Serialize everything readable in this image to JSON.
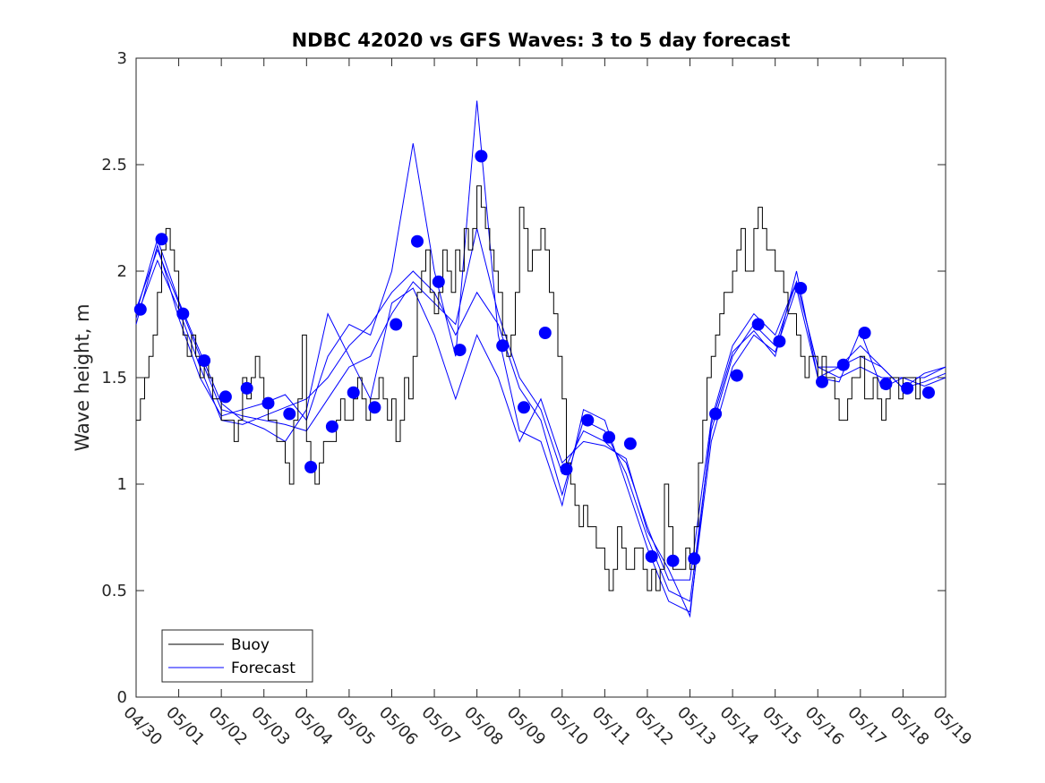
{
  "chart_data": {
    "type": "line",
    "title": "NDBC 42020 vs GFS Waves: 3 to 5 day forecast",
    "xlabel": "",
    "ylabel": "Wave height, m",
    "xlim": [
      "04/30",
      "05/19"
    ],
    "ylim": [
      0,
      3
    ],
    "grid": false,
    "legend_position": "bottom-left",
    "x_ticks": [
      "04/30",
      "05/01",
      "05/02",
      "05/03",
      "05/04",
      "05/05",
      "05/06",
      "05/07",
      "05/08",
      "05/09",
      "05/10",
      "05/11",
      "05/12",
      "05/13",
      "05/14",
      "05/15",
      "05/16",
      "05/17",
      "05/18",
      "05/19"
    ],
    "y_ticks": [
      "0",
      "0.5",
      "1",
      "1.5",
      "2",
      "2.5",
      "3"
    ],
    "colors": {
      "buoy": "#000000",
      "forecast": "#0000ff"
    },
    "series": [
      {
        "name": "Buoy",
        "style": "line",
        "day_offsets": [
          0,
          0.1,
          0.2,
          0.3,
          0.4,
          0.5,
          0.6,
          0.7,
          0.8,
          0.9,
          1.0,
          1.1,
          1.2,
          1.3,
          1.4,
          1.5,
          1.6,
          1.7,
          1.8,
          1.9,
          2.0,
          2.1,
          2.2,
          2.3,
          2.4,
          2.5,
          2.6,
          2.7,
          2.8,
          2.9,
          3.0,
          3.1,
          3.2,
          3.3,
          3.4,
          3.5,
          3.6,
          3.7,
          3.8,
          3.9,
          4.0,
          4.1,
          4.2,
          4.3,
          4.4,
          4.5,
          4.6,
          4.7,
          4.8,
          4.9,
          5.0,
          5.1,
          5.2,
          5.3,
          5.4,
          5.5,
          5.6,
          5.7,
          5.8,
          5.9,
          6.0,
          6.1,
          6.2,
          6.3,
          6.4,
          6.5,
          6.6,
          6.7,
          6.8,
          6.9,
          7.0,
          7.1,
          7.2,
          7.3,
          7.4,
          7.5,
          7.6,
          7.7,
          7.8,
          7.9,
          8.0,
          8.1,
          8.2,
          8.3,
          8.4,
          8.5,
          8.6,
          8.7,
          8.8,
          8.9,
          9.0,
          9.1,
          9.2,
          9.3,
          9.4,
          9.5,
          9.6,
          9.7,
          9.8,
          9.9,
          10.0,
          10.1,
          10.2,
          10.3,
          10.4,
          10.5,
          10.6,
          10.7,
          10.8,
          10.9,
          11.0,
          11.1,
          11.2,
          11.3,
          11.4,
          11.5,
          11.6,
          11.7,
          11.8,
          11.9,
          12.0,
          12.1,
          12.2,
          12.3,
          12.4,
          12.5,
          12.6,
          12.7,
          12.8,
          12.9,
          13.0,
          13.1,
          13.2,
          13.3,
          13.4,
          13.5,
          13.6,
          13.7,
          13.8,
          13.9,
          14.0,
          14.1,
          14.2,
          14.3,
          14.4,
          14.5,
          14.6,
          14.7,
          14.8,
          14.9,
          15.0,
          15.1,
          15.2,
          15.3,
          15.4,
          15.5,
          15.6,
          15.7,
          15.8,
          15.9,
          16.0,
          16.1,
          16.2,
          16.3,
          16.4,
          16.5,
          16.6,
          16.7,
          16.8,
          16.9,
          17.0,
          17.1,
          17.2,
          17.3,
          17.4,
          17.5,
          17.6,
          17.7,
          17.8,
          17.9,
          18.0,
          18.1,
          18.2,
          18.3,
          18.4,
          18.5,
          18.6,
          18.7,
          18.8,
          18.9,
          19.0
        ],
        "values": [
          1.3,
          1.4,
          1.5,
          1.6,
          1.7,
          1.9,
          2.1,
          2.2,
          2.1,
          2.0,
          1.8,
          1.7,
          1.6,
          1.7,
          1.6,
          1.5,
          1.6,
          1.5,
          1.4,
          1.4,
          1.3,
          1.3,
          1.3,
          1.2,
          1.3,
          1.5,
          1.4,
          1.5,
          1.6,
          1.5,
          1.4,
          1.3,
          1.3,
          1.2,
          1.2,
          1.1,
          1.0,
          1.3,
          1.4,
          1.7,
          1.2,
          1.1,
          1.0,
          1.1,
          1.2,
          1.2,
          1.2,
          1.3,
          1.4,
          1.3,
          1.3,
          1.4,
          1.5,
          1.4,
          1.3,
          1.4,
          1.4,
          1.5,
          1.4,
          1.3,
          1.4,
          1.2,
          1.3,
          1.5,
          1.4,
          1.6,
          1.9,
          2.0,
          2.1,
          1.9,
          1.8,
          1.9,
          2.1,
          2.0,
          1.9,
          2.1,
          2.0,
          2.2,
          2.1,
          2.2,
          2.4,
          2.3,
          2.2,
          2.1,
          2.0,
          1.9,
          1.7,
          1.6,
          1.7,
          1.9,
          2.3,
          2.2,
          2.0,
          2.1,
          2.1,
          2.2,
          2.1,
          1.9,
          1.8,
          1.6,
          1.4,
          1.1,
          1.0,
          0.9,
          0.8,
          0.9,
          0.8,
          0.8,
          0.7,
          0.7,
          0.6,
          0.5,
          0.6,
          0.8,
          0.7,
          0.6,
          0.6,
          0.7,
          0.7,
          0.6,
          0.5,
          0.6,
          0.5,
          0.6,
          1.0,
          0.8,
          0.6,
          0.6,
          0.6,
          0.7,
          0.6,
          0.8,
          1.1,
          1.3,
          1.5,
          1.6,
          1.7,
          1.8,
          1.9,
          1.9,
          2.0,
          2.1,
          2.2,
          2.0,
          2.0,
          2.2,
          2.3,
          2.2,
          2.1,
          2.1,
          2.0,
          2.0,
          1.9,
          1.8,
          1.8,
          1.7,
          1.6,
          1.5,
          1.6,
          1.6,
          1.5,
          1.6,
          1.5,
          1.5,
          1.4,
          1.3,
          1.3,
          1.4,
          1.5,
          1.5,
          1.6,
          1.4,
          1.4,
          1.5,
          1.4,
          1.3,
          1.4,
          1.5,
          1.5,
          1.4,
          1.5,
          1.5,
          1.5,
          1.4,
          1.5
        ]
      },
      {
        "name": "Forecast",
        "style": "markers",
        "day_offsets": [
          0.1,
          0.6,
          1.1,
          1.6,
          2.1,
          2.6,
          3.1,
          3.6,
          4.1,
          4.6,
          5.1,
          5.6,
          6.1,
          6.6,
          7.1,
          7.6,
          8.1,
          8.6,
          9.1,
          9.6,
          10.1,
          10.6,
          11.1,
          11.6,
          12.1,
          12.6,
          13.1,
          13.6,
          14.1,
          14.6,
          15.1,
          15.6,
          16.1,
          16.6,
          17.1,
          17.6,
          18.1,
          18.6
        ],
        "values": [
          1.82,
          2.15,
          1.8,
          1.58,
          1.41,
          1.45,
          1.38,
          1.33,
          1.08,
          1.27,
          1.43,
          1.36,
          1.75,
          2.14,
          1.95,
          1.63,
          2.54,
          1.65,
          1.36,
          1.71,
          1.07,
          1.3,
          1.22,
          1.19,
          0.66,
          0.64,
          0.65,
          1.33,
          1.51,
          1.75,
          1.67,
          1.92,
          1.48,
          1.56,
          1.71,
          1.47,
          1.45,
          1.43
        ]
      },
      {
        "name": "",
        "style": "line",
        "day_offsets": [
          0.0,
          0.5,
          1.0,
          1.5,
          2.0,
          2.5,
          3.0,
          3.5,
          4.0,
          4.5,
          5.0,
          5.5,
          6.0,
          6.5,
          7.0,
          7.5,
          8.0,
          8.5,
          9.0,
          9.5,
          10.0,
          10.5,
          11.0,
          11.5,
          12.0,
          12.5,
          13.0,
          13.5,
          14.0,
          14.5,
          15.0,
          15.5,
          16.0,
          16.5,
          17.0,
          17.5,
          18.0,
          18.5,
          19.0
        ],
        "values": [
          1.82,
          2.1,
          1.85,
          1.6,
          1.35,
          1.32,
          1.3,
          1.28,
          1.25,
          1.4,
          1.55,
          1.6,
          1.8,
          1.95,
          1.85,
          1.75,
          2.2,
          1.8,
          1.5,
          1.35,
          1.05,
          1.25,
          1.2,
          1.1,
          0.8,
          0.55,
          0.55,
          1.3,
          1.65,
          1.8,
          1.7,
          1.95,
          1.55,
          1.55,
          1.6,
          1.55,
          1.45,
          1.48,
          1.52
        ]
      },
      {
        "name": "",
        "style": "line",
        "day_offsets": [
          0.0,
          0.5,
          1.0,
          1.5,
          2.0,
          2.5,
          3.0,
          3.5,
          4.0,
          4.5,
          5.0,
          5.5,
          6.0,
          6.5,
          7.0,
          7.5,
          8.0,
          8.5,
          9.0,
          9.5,
          10.0,
          10.5,
          11.0,
          11.5,
          12.0,
          12.5,
          13.0,
          13.5,
          14.0,
          14.5,
          15.0,
          15.5,
          16.0,
          16.5,
          17.0,
          17.5,
          18.0,
          18.5,
          19.0
        ],
        "values": [
          1.78,
          2.05,
          1.82,
          1.55,
          1.3,
          1.28,
          1.32,
          1.36,
          1.4,
          1.5,
          1.65,
          1.75,
          1.9,
          2.0,
          1.9,
          1.7,
          1.9,
          1.75,
          1.45,
          1.3,
          0.95,
          1.3,
          1.25,
          1.05,
          0.75,
          0.5,
          0.45,
          1.25,
          1.6,
          1.75,
          1.65,
          1.95,
          1.55,
          1.5,
          1.55,
          1.5,
          1.5,
          1.5,
          1.55
        ]
      },
      {
        "name": "",
        "style": "line",
        "day_offsets": [
          0.0,
          0.5,
          1.0,
          1.5,
          2.0,
          2.5,
          3.0,
          3.5,
          4.0,
          4.5,
          5.0,
          5.5,
          6.0,
          6.5,
          7.0,
          7.5,
          8.0,
          8.5,
          9.0,
          9.5,
          10.0,
          10.5,
          11.0,
          11.5,
          12.0,
          12.5,
          13.0,
          13.5,
          14.0,
          14.5,
          15.0,
          15.5,
          16.0,
          16.5,
          17.0,
          17.5,
          18.0,
          18.5,
          19.0
        ],
        "values": [
          1.75,
          2.12,
          1.78,
          1.5,
          1.32,
          1.35,
          1.38,
          1.42,
          1.3,
          1.6,
          1.75,
          1.7,
          2.0,
          2.6,
          2.0,
          1.6,
          2.8,
          1.7,
          1.25,
          1.2,
          0.9,
          1.35,
          1.3,
          1.0,
          0.7,
          0.45,
          0.4,
          1.2,
          1.55,
          1.7,
          1.62,
          1.92,
          1.5,
          1.55,
          1.65,
          1.55,
          1.45,
          1.52,
          1.55
        ]
      },
      {
        "name": "",
        "style": "line",
        "day_offsets": [
          0.0,
          0.5,
          1.0,
          1.5,
          2.0,
          2.5,
          3.0,
          3.5,
          4.0,
          4.5,
          5.0,
          5.5,
          6.0,
          6.5,
          7.0,
          7.5,
          8.0,
          8.5,
          9.0,
          9.5,
          10.0,
          10.5,
          11.0,
          11.5,
          12.0,
          12.5,
          13.0,
          13.5,
          14.0,
          14.5,
          15.0,
          15.5,
          16.0,
          16.5,
          17.0,
          17.5,
          18.0,
          18.5,
          19.0
        ],
        "values": [
          1.8,
          2.15,
          1.86,
          1.62,
          1.38,
          1.3,
          1.26,
          1.2,
          1.35,
          1.8,
          1.6,
          1.4,
          1.85,
          1.92,
          1.7,
          1.4,
          1.7,
          1.5,
          1.2,
          1.4,
          1.1,
          1.2,
          1.18,
          1.12,
          0.78,
          0.6,
          0.38,
          1.28,
          1.62,
          1.72,
          1.6,
          2.0,
          1.5,
          1.48,
          1.72,
          1.45,
          1.5,
          1.46,
          1.5
        ]
      }
    ]
  },
  "legend": {
    "buoy_label": "Buoy",
    "forecast_label": "Forecast"
  }
}
